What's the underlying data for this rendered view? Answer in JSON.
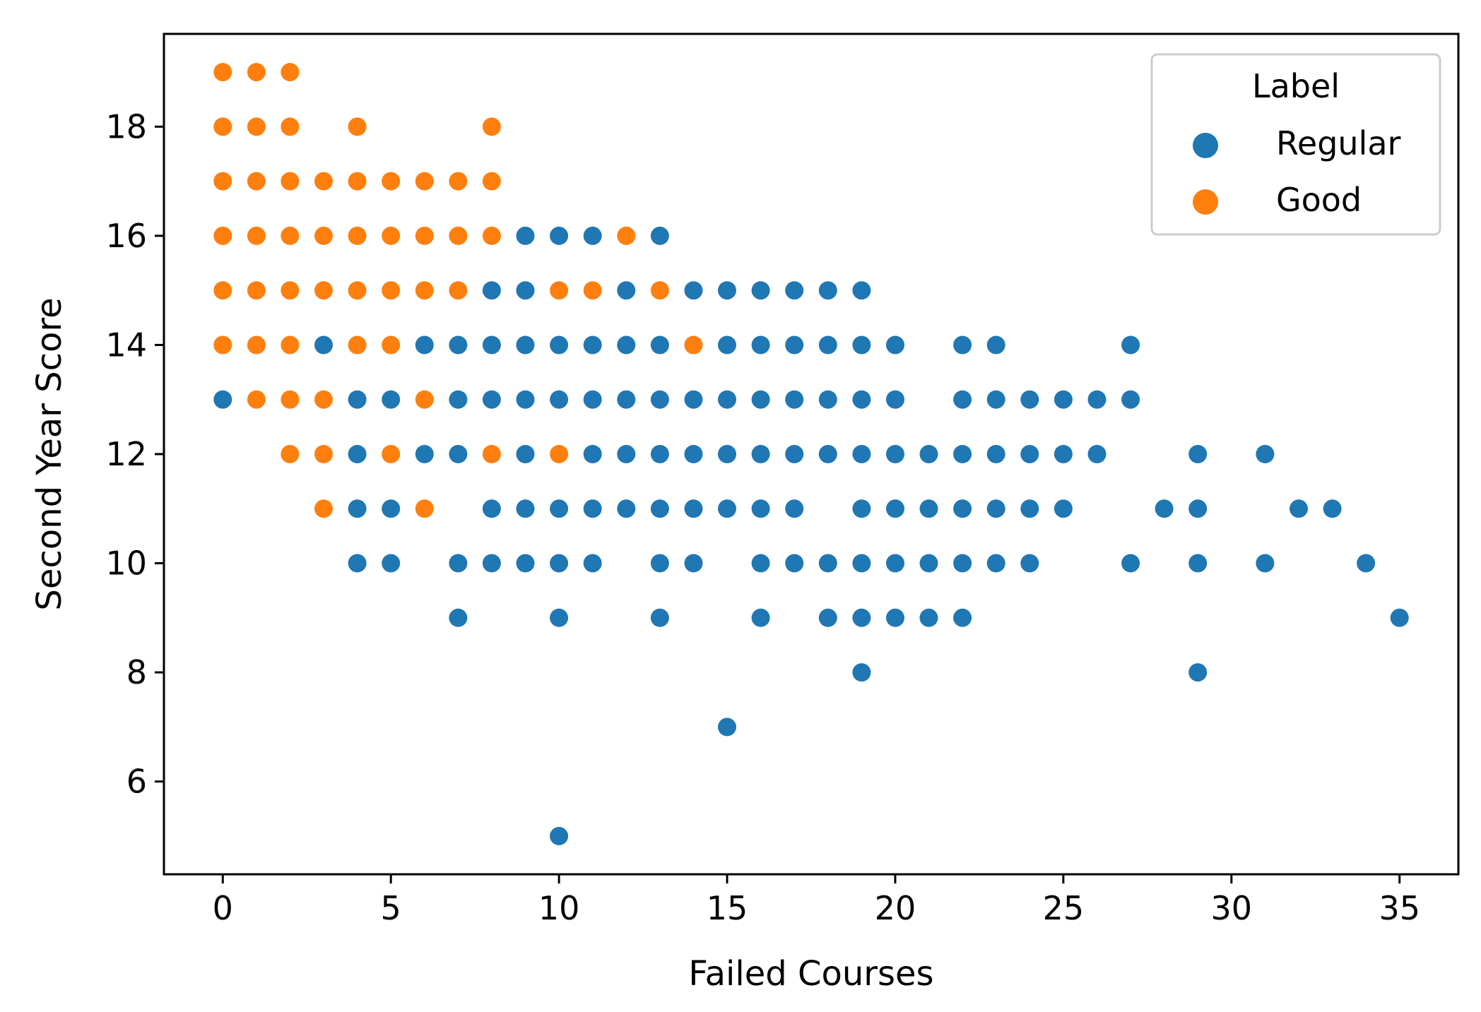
{
  "chart_data": {
    "type": "scatter",
    "xlabel": "Failed Courses",
    "ylabel": "Second Year Score",
    "xlim": [
      -1.75,
      36.75
    ],
    "ylim": [
      4.3,
      19.7
    ],
    "xticks": [
      0,
      5,
      10,
      15,
      20,
      25,
      30,
      35
    ],
    "yticks": [
      6,
      8,
      10,
      12,
      14,
      16,
      18
    ],
    "grid": false,
    "legend": {
      "title": "Label",
      "position": "top-right"
    },
    "series": [
      {
        "name": "Regular",
        "color": "#1f77b4",
        "points": [
          [
            0,
            13
          ],
          [
            3,
            14
          ],
          [
            4,
            13
          ],
          [
            4,
            12
          ],
          [
            4,
            11
          ],
          [
            4,
            10
          ],
          [
            5,
            13
          ],
          [
            5,
            11
          ],
          [
            5,
            10
          ],
          [
            6,
            14
          ],
          [
            6,
            12
          ],
          [
            7,
            14
          ],
          [
            7,
            13
          ],
          [
            7,
            12
          ],
          [
            7,
            10
          ],
          [
            7,
            9
          ],
          [
            8,
            15
          ],
          [
            8,
            14
          ],
          [
            8,
            13
          ],
          [
            8,
            11
          ],
          [
            8,
            10
          ],
          [
            9,
            16
          ],
          [
            9,
            15
          ],
          [
            9,
            14
          ],
          [
            9,
            13
          ],
          [
            9,
            12
          ],
          [
            9,
            11
          ],
          [
            9,
            10
          ],
          [
            10,
            16
          ],
          [
            10,
            14
          ],
          [
            10,
            13
          ],
          [
            10,
            11
          ],
          [
            10,
            10
          ],
          [
            10,
            9
          ],
          [
            10,
            5
          ],
          [
            11,
            16
          ],
          [
            11,
            14
          ],
          [
            11,
            13
          ],
          [
            11,
            12
          ],
          [
            11,
            11
          ],
          [
            11,
            10
          ],
          [
            12,
            15
          ],
          [
            12,
            14
          ],
          [
            12,
            13
          ],
          [
            12,
            12
          ],
          [
            12,
            11
          ],
          [
            13,
            16
          ],
          [
            13,
            14
          ],
          [
            13,
            13
          ],
          [
            13,
            12
          ],
          [
            13,
            11
          ],
          [
            13,
            10
          ],
          [
            13,
            9
          ],
          [
            14,
            15
          ],
          [
            14,
            13
          ],
          [
            14,
            12
          ],
          [
            14,
            11
          ],
          [
            14,
            10
          ],
          [
            15,
            15
          ],
          [
            15,
            14
          ],
          [
            15,
            13
          ],
          [
            15,
            12
          ],
          [
            15,
            11
          ],
          [
            15,
            7
          ],
          [
            16,
            15
          ],
          [
            16,
            14
          ],
          [
            16,
            13
          ],
          [
            16,
            12
          ],
          [
            16,
            11
          ],
          [
            16,
            10
          ],
          [
            16,
            9
          ],
          [
            17,
            15
          ],
          [
            17,
            14
          ],
          [
            17,
            13
          ],
          [
            17,
            12
          ],
          [
            17,
            11
          ],
          [
            17,
            10
          ],
          [
            18,
            15
          ],
          [
            18,
            14
          ],
          [
            18,
            13
          ],
          [
            18,
            12
          ],
          [
            18,
            10
          ],
          [
            18,
            9
          ],
          [
            19,
            15
          ],
          [
            19,
            14
          ],
          [
            19,
            13
          ],
          [
            19,
            12
          ],
          [
            19,
            11
          ],
          [
            19,
            10
          ],
          [
            19,
            9
          ],
          [
            19,
            8
          ],
          [
            20,
            14
          ],
          [
            20,
            13
          ],
          [
            20,
            12
          ],
          [
            20,
            11
          ],
          [
            20,
            10
          ],
          [
            20,
            9
          ],
          [
            21,
            12
          ],
          [
            21,
            11
          ],
          [
            21,
            10
          ],
          [
            21,
            9
          ],
          [
            22,
            14
          ],
          [
            22,
            13
          ],
          [
            22,
            12
          ],
          [
            22,
            11
          ],
          [
            22,
            10
          ],
          [
            22,
            9
          ],
          [
            23,
            14
          ],
          [
            23,
            13
          ],
          [
            23,
            12
          ],
          [
            23,
            11
          ],
          [
            23,
            10
          ],
          [
            24,
            13
          ],
          [
            24,
            12
          ],
          [
            24,
            11
          ],
          [
            24,
            10
          ],
          [
            25,
            13
          ],
          [
            25,
            12
          ],
          [
            25,
            11
          ],
          [
            26,
            13
          ],
          [
            26,
            12
          ],
          [
            27,
            14
          ],
          [
            27,
            13
          ],
          [
            27,
            10
          ],
          [
            28,
            11
          ],
          [
            29,
            12
          ],
          [
            29,
            11
          ],
          [
            29,
            10
          ],
          [
            29,
            8
          ],
          [
            31,
            12
          ],
          [
            31,
            10
          ],
          [
            32,
            11
          ],
          [
            33,
            11
          ],
          [
            34,
            10
          ],
          [
            35,
            9
          ]
        ]
      },
      {
        "name": "Good",
        "color": "#ff7f0e",
        "points": [
          [
            0,
            19
          ],
          [
            0,
            18
          ],
          [
            0,
            17
          ],
          [
            0,
            16
          ],
          [
            0,
            15
          ],
          [
            0,
            14
          ],
          [
            1,
            19
          ],
          [
            1,
            18
          ],
          [
            1,
            17
          ],
          [
            1,
            16
          ],
          [
            1,
            15
          ],
          [
            1,
            14
          ],
          [
            1,
            13
          ],
          [
            2,
            19
          ],
          [
            2,
            18
          ],
          [
            2,
            17
          ],
          [
            2,
            16
          ],
          [
            2,
            15
          ],
          [
            2,
            14
          ],
          [
            2,
            13
          ],
          [
            2,
            12
          ],
          [
            3,
            17
          ],
          [
            3,
            16
          ],
          [
            3,
            15
          ],
          [
            3,
            13
          ],
          [
            3,
            12
          ],
          [
            3,
            11
          ],
          [
            4,
            18
          ],
          [
            4,
            17
          ],
          [
            4,
            16
          ],
          [
            4,
            15
          ],
          [
            4,
            14
          ],
          [
            5,
            17
          ],
          [
            5,
            16
          ],
          [
            5,
            15
          ],
          [
            5,
            14
          ],
          [
            5,
            12
          ],
          [
            6,
            17
          ],
          [
            6,
            16
          ],
          [
            6,
            15
          ],
          [
            6,
            13
          ],
          [
            6,
            11
          ],
          [
            7,
            17
          ],
          [
            7,
            16
          ],
          [
            7,
            15
          ],
          [
            8,
            18
          ],
          [
            8,
            17
          ],
          [
            8,
            16
          ],
          [
            8,
            12
          ],
          [
            10,
            15
          ],
          [
            10,
            12
          ],
          [
            11,
            15
          ],
          [
            12,
            16
          ],
          [
            13,
            15
          ],
          [
            14,
            14
          ]
        ]
      }
    ]
  }
}
